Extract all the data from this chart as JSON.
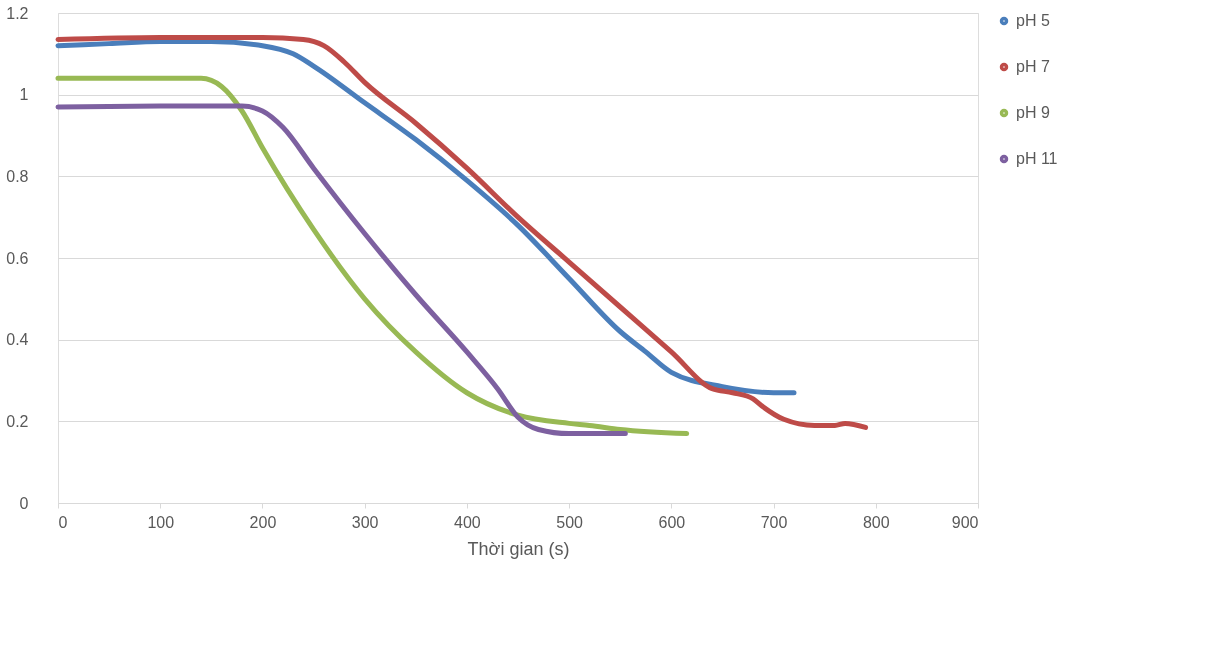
{
  "chart_data": {
    "type": "line",
    "xlabel": "Thời gian (s)",
    "xlim": [
      0,
      900
    ],
    "xticks": [
      0,
      100,
      200,
      300,
      400,
      500,
      600,
      700,
      800,
      900
    ],
    "ylim": [
      0,
      1.2
    ],
    "yticks": [
      0,
      0.2,
      0.4,
      0.6,
      0.8,
      1,
      1.2
    ],
    "grid": "y",
    "legend": "right",
    "marker": "none",
    "line_style": "solid",
    "series": [
      {
        "name": "pH 5",
        "color": "#4a7ebb",
        "x": [
          0,
          50,
          100,
          150,
          200,
          230,
          250,
          300,
          350,
          400,
          450,
          500,
          550,
          575,
          600,
          650,
          700,
          720
        ],
        "values": [
          1.12,
          1.125,
          1.13,
          1.13,
          1.12,
          1.1,
          1.07,
          0.98,
          0.89,
          0.79,
          0.68,
          0.55,
          0.42,
          0.37,
          0.32,
          0.285,
          0.27,
          0.27
        ]
      },
      {
        "name": "pH 7",
        "color": "#be4b48",
        "x": [
          0,
          100,
          200,
          240,
          260,
          280,
          300,
          350,
          400,
          450,
          500,
          550,
          600,
          640,
          660,
          680,
          690,
          710,
          740,
          760,
          770,
          790
        ],
        "values": [
          1.135,
          1.14,
          1.14,
          1.135,
          1.12,
          1.08,
          1.03,
          0.93,
          0.82,
          0.7,
          0.59,
          0.48,
          0.37,
          0.28,
          0.27,
          0.255,
          0.235,
          0.205,
          0.19,
          0.19,
          0.195,
          0.185
        ]
      },
      {
        "name": "pH 9",
        "color": "#98b954",
        "x": [
          0,
          100,
          140,
          160,
          180,
          200,
          250,
          300,
          350,
          400,
          450,
          500,
          520,
          550,
          615
        ],
        "values": [
          1.04,
          1.04,
          1.04,
          1.02,
          0.96,
          0.87,
          0.67,
          0.5,
          0.37,
          0.27,
          0.215,
          0.195,
          0.19,
          0.18,
          0.17
        ]
      },
      {
        "name": "pH 11",
        "color": "#7d60a0",
        "x": [
          0,
          100,
          180,
          200,
          220,
          250,
          300,
          350,
          400,
          430,
          450,
          470,
          500,
          555
        ],
        "values": [
          0.97,
          0.972,
          0.972,
          0.96,
          0.92,
          0.82,
          0.66,
          0.51,
          0.37,
          0.28,
          0.21,
          0.18,
          0.17,
          0.17
        ]
      }
    ]
  }
}
